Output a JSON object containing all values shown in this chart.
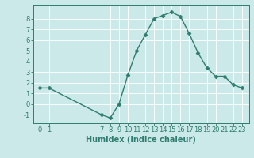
{
  "x": [
    0,
    1,
    7,
    8,
    9,
    10,
    11,
    12,
    13,
    14,
    15,
    16,
    17,
    18,
    19,
    20,
    21,
    22,
    23
  ],
  "y": [
    1.5,
    1.5,
    -1.0,
    -1.3,
    0.0,
    2.7,
    5.0,
    6.5,
    8.0,
    8.3,
    8.6,
    8.2,
    6.6,
    4.8,
    3.4,
    2.6,
    2.6,
    1.8,
    1.5
  ],
  "line_color": "#2e7d6e",
  "marker": "D",
  "marker_size": 2.5,
  "bg_color": "#cce9e9",
  "grid_color": "#b0d8d8",
  "xlabel": "Humidex (Indice chaleur)",
  "xlabel_fontsize": 7,
  "tick_fontsize": 6,
  "ylim": [
    -1.8,
    9.3
  ],
  "yticks": [
    -1,
    0,
    1,
    2,
    3,
    4,
    5,
    6,
    7,
    8
  ],
  "xticks": [
    0,
    1,
    7,
    8,
    9,
    10,
    11,
    12,
    13,
    14,
    15,
    16,
    17,
    18,
    19,
    20,
    21,
    22,
    23
  ],
  "xlim": [
    -0.8,
    23.8
  ]
}
